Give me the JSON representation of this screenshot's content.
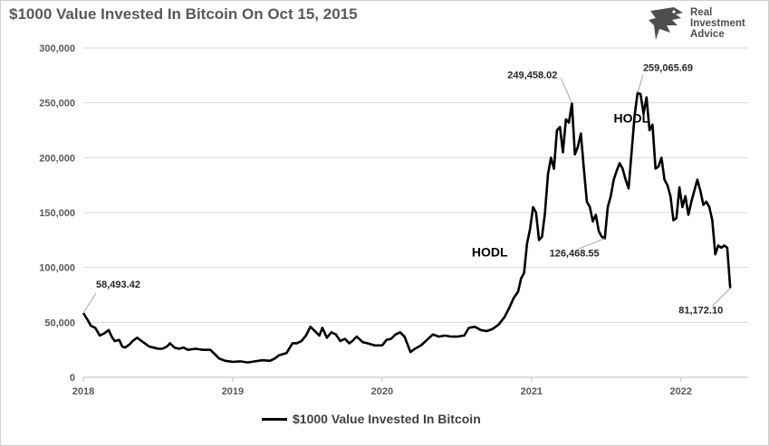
{
  "title": "$1000 Value Invested In Bitcoin On Oct 15, 2015",
  "logo": {
    "lines": [
      "Real",
      "Investment",
      "Advice"
    ]
  },
  "legend": {
    "label": "$1000 Value Invested In Bitcoin"
  },
  "colors": {
    "line": "#000000",
    "grid": "#d9d9d9",
    "text": "#595959"
  },
  "chart_data": {
    "type": "line",
    "title": "$1000 Value Invested In Bitcoin On Oct 15, 2015",
    "xlabel": "",
    "ylabel": "",
    "xlim": [
      2018.0,
      2022.45
    ],
    "ylim": [
      0,
      300000
    ],
    "grid": true,
    "legend_position": "bottom",
    "x_ticks": [
      2018,
      2019,
      2020,
      2021,
      2022
    ],
    "x_tick_labels": [
      "2018",
      "2019",
      "2020",
      "2021",
      "2022"
    ],
    "y_ticks": [
      0,
      50000,
      100000,
      150000,
      200000,
      250000,
      300000
    ],
    "y_tick_labels": [
      "0",
      "50,000",
      "100,000",
      "150,000",
      "200,000",
      "250,000",
      "300,000"
    ],
    "series": [
      {
        "name": "$1000 Value Invested In Bitcoin",
        "points": [
          [
            2018.0,
            58493
          ],
          [
            2018.03,
            52000
          ],
          [
            2018.05,
            47000
          ],
          [
            2018.08,
            45000
          ],
          [
            2018.11,
            38000
          ],
          [
            2018.14,
            40000
          ],
          [
            2018.17,
            43000
          ],
          [
            2018.19,
            37000
          ],
          [
            2018.21,
            33000
          ],
          [
            2018.24,
            34000
          ],
          [
            2018.26,
            28000
          ],
          [
            2018.28,
            27000
          ],
          [
            2018.31,
            30000
          ],
          [
            2018.33,
            33000
          ],
          [
            2018.36,
            36000
          ],
          [
            2018.39,
            33000
          ],
          [
            2018.42,
            30000
          ],
          [
            2018.44,
            28000
          ],
          [
            2018.47,
            27000
          ],
          [
            2018.5,
            26000
          ],
          [
            2018.53,
            26000
          ],
          [
            2018.56,
            28000
          ],
          [
            2018.58,
            31000
          ],
          [
            2018.61,
            27000
          ],
          [
            2018.64,
            26000
          ],
          [
            2018.67,
            27000
          ],
          [
            2018.7,
            25000
          ],
          [
            2018.75,
            26000
          ],
          [
            2018.8,
            25000
          ],
          [
            2018.85,
            25000
          ],
          [
            2018.88,
            21000
          ],
          [
            2018.91,
            17000
          ],
          [
            2018.95,
            15000
          ],
          [
            2019.0,
            14000
          ],
          [
            2019.05,
            14500
          ],
          [
            2019.1,
            13500
          ],
          [
            2019.15,
            14500
          ],
          [
            2019.2,
            15500
          ],
          [
            2019.25,
            15000
          ],
          [
            2019.28,
            17000
          ],
          [
            2019.31,
            20000
          ],
          [
            2019.36,
            22000
          ],
          [
            2019.4,
            31000
          ],
          [
            2019.43,
            31000
          ],
          [
            2019.46,
            33000
          ],
          [
            2019.49,
            38000
          ],
          [
            2019.52,
            46000
          ],
          [
            2019.55,
            42000
          ],
          [
            2019.58,
            38000
          ],
          [
            2019.6,
            45000
          ],
          [
            2019.63,
            36000
          ],
          [
            2019.66,
            41000
          ],
          [
            2019.69,
            39000
          ],
          [
            2019.72,
            33000
          ],
          [
            2019.75,
            35000
          ],
          [
            2019.78,
            31000
          ],
          [
            2019.8,
            33000
          ],
          [
            2019.83,
            37000
          ],
          [
            2019.87,
            32000
          ],
          [
            2019.9,
            31000
          ],
          [
            2019.95,
            29000
          ],
          [
            2020.0,
            29000
          ],
          [
            2020.03,
            34000
          ],
          [
            2020.06,
            35000
          ],
          [
            2020.09,
            39000
          ],
          [
            2020.12,
            41000
          ],
          [
            2020.15,
            37000
          ],
          [
            2020.17,
            30000
          ],
          [
            2020.19,
            23000
          ],
          [
            2020.22,
            26000
          ],
          [
            2020.26,
            29000
          ],
          [
            2020.3,
            34000
          ],
          [
            2020.34,
            39000
          ],
          [
            2020.38,
            37000
          ],
          [
            2020.42,
            38000
          ],
          [
            2020.46,
            37000
          ],
          [
            2020.5,
            37000
          ],
          [
            2020.55,
            38000
          ],
          [
            2020.58,
            45000
          ],
          [
            2020.62,
            46000
          ],
          [
            2020.66,
            43000
          ],
          [
            2020.7,
            42000
          ],
          [
            2020.74,
            44000
          ],
          [
            2020.78,
            48000
          ],
          [
            2020.82,
            55000
          ],
          [
            2020.85,
            63000
          ],
          [
            2020.88,
            72000
          ],
          [
            2020.91,
            78000
          ],
          [
            2020.93,
            90000
          ],
          [
            2020.95,
            95000
          ],
          [
            2020.97,
            122000
          ],
          [
            2020.99,
            135000
          ],
          [
            2021.01,
            155000
          ],
          [
            2021.03,
            150000
          ],
          [
            2021.05,
            125000
          ],
          [
            2021.07,
            128000
          ],
          [
            2021.09,
            150000
          ],
          [
            2021.11,
            185000
          ],
          [
            2021.13,
            200000
          ],
          [
            2021.15,
            190000
          ],
          [
            2021.17,
            225000
          ],
          [
            2021.19,
            228000
          ],
          [
            2021.21,
            205000
          ],
          [
            2021.23,
            235000
          ],
          [
            2021.25,
            232000
          ],
          [
            2021.27,
            249458
          ],
          [
            2021.29,
            203000
          ],
          [
            2021.31,
            210000
          ],
          [
            2021.33,
            222000
          ],
          [
            2021.35,
            190000
          ],
          [
            2021.37,
            160000
          ],
          [
            2021.39,
            155000
          ],
          [
            2021.41,
            142000
          ],
          [
            2021.43,
            148000
          ],
          [
            2021.45,
            133000
          ],
          [
            2021.47,
            128000
          ],
          [
            2021.49,
            126469
          ],
          [
            2021.51,
            155000
          ],
          [
            2021.53,
            165000
          ],
          [
            2021.55,
            180000
          ],
          [
            2021.57,
            188000
          ],
          [
            2021.59,
            195000
          ],
          [
            2021.61,
            190000
          ],
          [
            2021.63,
            180000
          ],
          [
            2021.65,
            172000
          ],
          [
            2021.67,
            205000
          ],
          [
            2021.69,
            238000
          ],
          [
            2021.71,
            259066
          ],
          [
            2021.73,
            258000
          ],
          [
            2021.75,
            240000
          ],
          [
            2021.77,
            255000
          ],
          [
            2021.79,
            225000
          ],
          [
            2021.81,
            230000
          ],
          [
            2021.83,
            190000
          ],
          [
            2021.85,
            192000
          ],
          [
            2021.87,
            200000
          ],
          [
            2021.89,
            180000
          ],
          [
            2021.91,
            175000
          ],
          [
            2021.93,
            165000
          ],
          [
            2021.95,
            143000
          ],
          [
            2021.97,
            145000
          ],
          [
            2021.99,
            173000
          ],
          [
            2022.01,
            155000
          ],
          [
            2022.03,
            165000
          ],
          [
            2022.05,
            148000
          ],
          [
            2022.07,
            160000
          ],
          [
            2022.09,
            170000
          ],
          [
            2022.11,
            180000
          ],
          [
            2022.13,
            170000
          ],
          [
            2022.15,
            157000
          ],
          [
            2022.17,
            160000
          ],
          [
            2022.19,
            155000
          ],
          [
            2022.21,
            143000
          ],
          [
            2022.23,
            112000
          ],
          [
            2022.25,
            120000
          ],
          [
            2022.27,
            118000
          ],
          [
            2022.29,
            120000
          ],
          [
            2022.31,
            118000
          ],
          [
            2022.33,
            81172
          ]
        ]
      }
    ],
    "annotations": [
      {
        "text": "58,493.42",
        "x": 2018.0,
        "y": 58493
      },
      {
        "text": "249,458.02",
        "x": 2021.27,
        "y": 249458
      },
      {
        "text": "126,468.55",
        "x": 2021.49,
        "y": 126469
      },
      {
        "text": "259,065.69",
        "x": 2021.71,
        "y": 259066
      },
      {
        "text": "81,172.10",
        "x": 2022.33,
        "y": 81172
      }
    ],
    "text_labels": [
      {
        "text": "HODL",
        "x": 2020.6,
        "y": 110000
      },
      {
        "text": "HODL",
        "x": 2021.55,
        "y": 232000
      }
    ]
  }
}
